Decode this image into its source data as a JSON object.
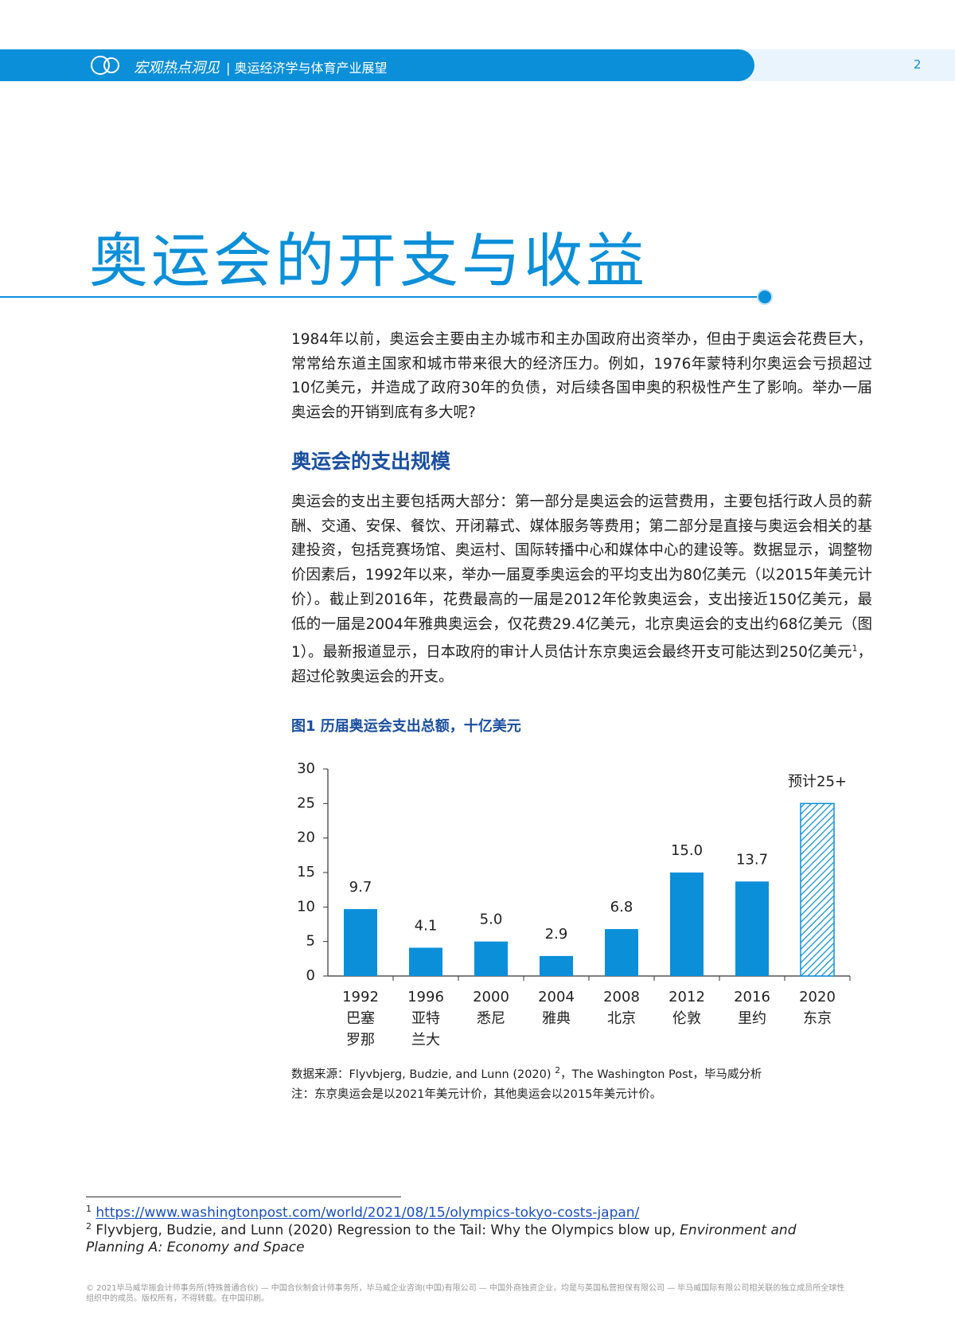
{
  "header": {
    "series": "宏观热点洞见",
    "separator": "|",
    "report": "奥运经济学与体育产业展望",
    "page_number": "2"
  },
  "title": "奥运会的开支与收益",
  "intro": "1984年以前，奥运会主要由主办城市和主办国政府出资举办，但由于奥运会花费巨大，常常给东道主国家和城市带来很大的经济压力。例如，1976年蒙特利尔奥运会亏损超过10亿美元，并造成了政府30年的负债，对后续各国申奥的积极性产生了影响。举办一届奥运会的开销到底有多大呢?",
  "section": {
    "heading": "奥运会的支出规模",
    "text": "奥运会的支出主要包括两大部分：第一部分是奥运会的运营费用，主要包括行政人员的薪酬、交通、安保、餐饮、开闭幕式、媒体服务等费用；第二部分是直接与奥运会相关的基建投资，包括竞赛场馆、奥运村、国际转播中心和媒体中心的建设等。数据显示，调整物价因素后，1992年以来，举办一届夏季奥运会的平均支出为80亿美元（以2015年美元计价）。截止到2016年，花费最高的一届是2012年伦敦奥运会，支出接近150亿美元，最低的一届是2004年雅典奥运会，仅花费29.4亿美元，北京奥运会的支出约68亿美元（图1）。最新报道显示，日本政府的审计人员估计东京奥运会最终开支可能达到250亿美元",
    "ref": "1",
    "tail": "，超过伦敦奥运会的开支。"
  },
  "chart_data": {
    "type": "bar",
    "title": "图1  历届奥运会支出总额，十亿美元",
    "categories": [
      [
        "1992",
        "巴塞",
        "罗那"
      ],
      [
        "1996",
        "亚特",
        "兰大"
      ],
      [
        "2000",
        "悉尼"
      ],
      [
        "2004",
        "雅典"
      ],
      [
        "2008",
        "北京"
      ],
      [
        "2012",
        "伦敦"
      ],
      [
        "2016",
        "里约"
      ],
      [
        "2020",
        "东京"
      ]
    ],
    "values": [
      9.7,
      4.1,
      5.0,
      2.9,
      6.8,
      15.0,
      13.7,
      25
    ],
    "value_labels": [
      "9.7",
      "4.1",
      "5.0",
      "2.9",
      "6.8",
      "15.0",
      "13.7",
      "预计25+"
    ],
    "patterns": [
      "solid",
      "solid",
      "solid",
      "solid",
      "solid",
      "solid",
      "solid",
      "hatched"
    ],
    "color": "#0b8fd9",
    "ylim": [
      0,
      30
    ],
    "yticks": [
      0,
      5,
      10,
      15,
      20,
      25,
      30
    ],
    "grid": false,
    "source_prefix": "数据来源：Flyvbjerg, Budzie, and Lunn (2020) ",
    "source_ref": "2",
    "source_suffix": "，The Washington Post，毕马威分析",
    "note": "注：东京奥运会是以2021年美元计价，其他奥运会以2015年美元计价。"
  },
  "footnotes": [
    {
      "mark": "1",
      "text": "https://www.washingtonpost.com/world/2021/08/15/olympics-tokyo-costs-japan/"
    },
    {
      "mark": "2",
      "text": "Flyvbjerg, Budzie, and Lunn (2020) Regression to the Tail: Why the Olympics blow up, ",
      "journal": "Environment and Planning A: Economy and Space"
    }
  ],
  "copyright": "© 2021毕马威华振会计师事务所(特殊普通合伙) — 中国合伙制会计师事务所，毕马威企业咨询(中国)有限公司 — 中国外商独资企业，均是与英国私营担保有限公司 — 毕马威国际有限公司相关联的独立成员所全球性组织中的成员。版权所有，不得转载。在中国印刷。"
}
